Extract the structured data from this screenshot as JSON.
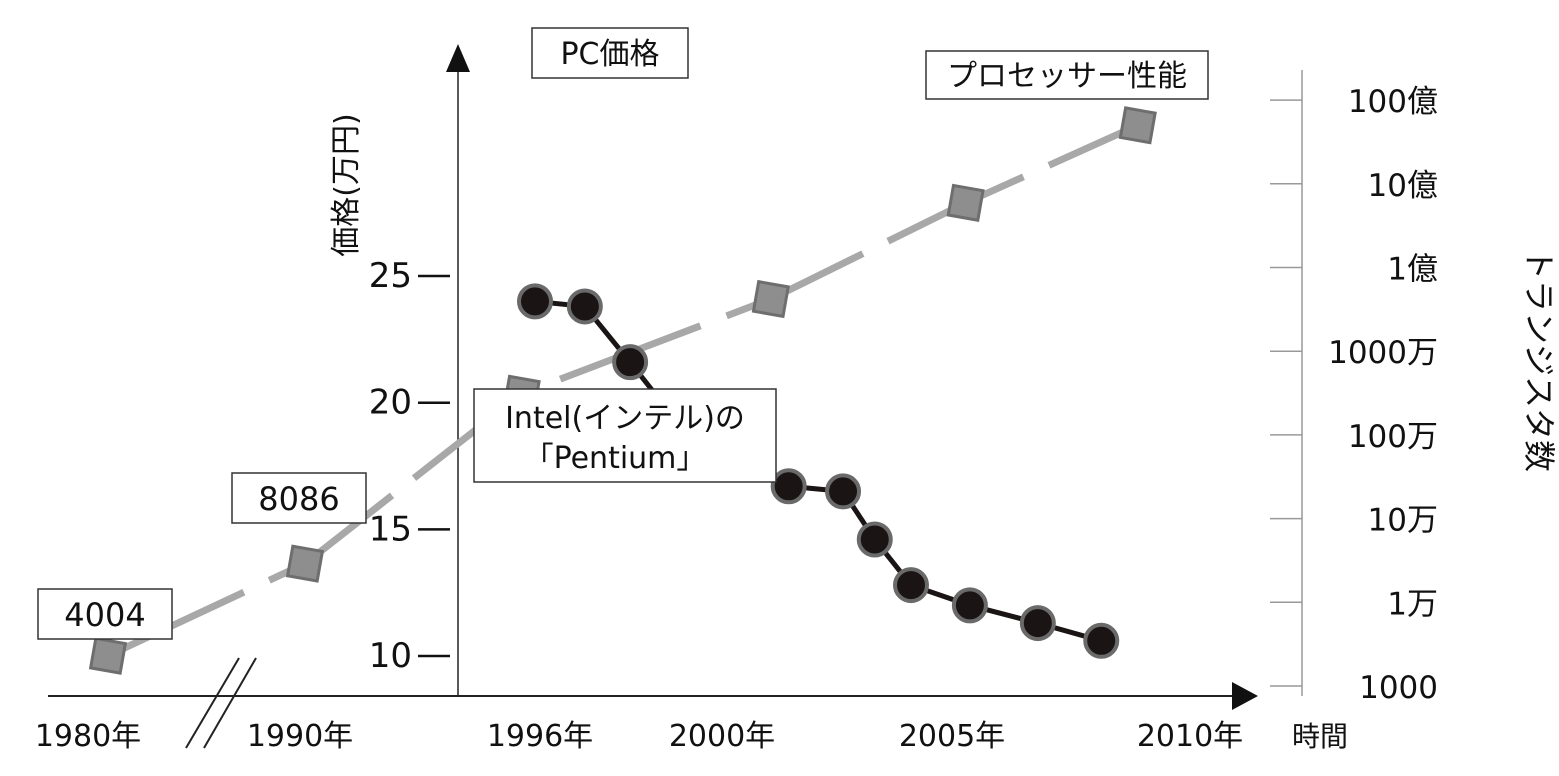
{
  "chart_data": {
    "type": "line",
    "x_axis": {
      "label": "時間",
      "ticks": [
        "1980年",
        "1990年",
        "1996年",
        "2000年",
        "2005年",
        "2010年"
      ]
    },
    "y_left": {
      "label": "価格(万円)",
      "ticks": [
        "10",
        "15",
        "20",
        "25"
      ],
      "range": [
        10,
        25
      ]
    },
    "y_right": {
      "label": "トランジスタ数",
      "ticks": [
        "1000",
        "1万",
        "10万",
        "100万",
        "1000万",
        "1億",
        "10億",
        "100億"
      ],
      "scale": "log",
      "range": [
        1000,
        10000000000
      ]
    },
    "series": [
      {
        "name": "PC価格",
        "axis": "left",
        "marker": "circle",
        "color": "#1a1414",
        "points": [
          {
            "x": 1996.0,
            "y": 24.0
          },
          {
            "x": 1997.1,
            "y": 23.8
          },
          {
            "x": 1998.1,
            "y": 21.6
          },
          {
            "x": 1999.2,
            "y": 19.1
          },
          {
            "x": 2000.2,
            "y": 17.9
          },
          {
            "x": 2001.6,
            "y": 16.7
          },
          {
            "x": 2002.8,
            "y": 16.5
          },
          {
            "x": 2003.5,
            "y": 14.6
          },
          {
            "x": 2004.3,
            "y": 12.8
          },
          {
            "x": 2005.6,
            "y": 12.0
          },
          {
            "x": 2007.1,
            "y": 11.3
          },
          {
            "x": 2008.5,
            "y": 10.6
          }
        ]
      },
      {
        "name": "プロセッサー性能",
        "axis": "right",
        "marker": "square",
        "color": "#999999",
        "points": [
          {
            "x": "1980年以前",
            "y": 2300
          },
          {
            "x": "1980年代",
            "y": 29000
          },
          {
            "x": 1995.0,
            "y": 3100000
          },
          {
            "x": 2000.5,
            "y": 42000000
          },
          {
            "x": 2004.8,
            "y": 592000000
          },
          {
            "x": 2008.6,
            "y": 5000000000
          }
        ]
      }
    ],
    "annotations": [
      {
        "text": "4004"
      },
      {
        "text": "8086"
      },
      {
        "lines": [
          "Intel(インテル)の",
          "「Pentium」"
        ]
      }
    ]
  }
}
